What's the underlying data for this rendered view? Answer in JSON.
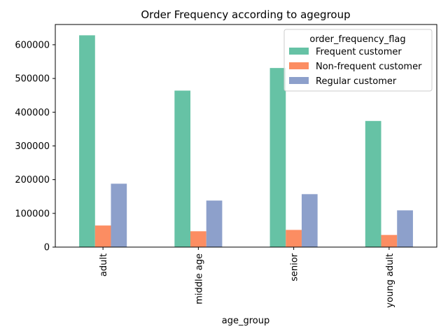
{
  "chart_data": {
    "type": "bar",
    "title": "Order Frequency according to agegroup",
    "xlabel": "age_group",
    "ylabel": "",
    "categories": [
      "adult",
      "middle age",
      "senior",
      "young adult"
    ],
    "series": [
      {
        "name": "Frequent customer",
        "color": "#66c2a5",
        "values": [
          628000,
          464000,
          531000,
          374000
        ]
      },
      {
        "name": "Non-frequent customer",
        "color": "#fc8d62",
        "values": [
          64000,
          47000,
          51000,
          36000
        ]
      },
      {
        "name": "Regular customer",
        "color": "#8da0cb",
        "values": [
          188000,
          138000,
          157000,
          109000
        ]
      }
    ],
    "ylim": [
      0,
      660000
    ],
    "yticks": [
      0,
      100000,
      200000,
      300000,
      400000,
      500000,
      600000
    ],
    "legend": {
      "title": "order_frequency_flag",
      "placement": "top-right"
    },
    "grid": false
  }
}
